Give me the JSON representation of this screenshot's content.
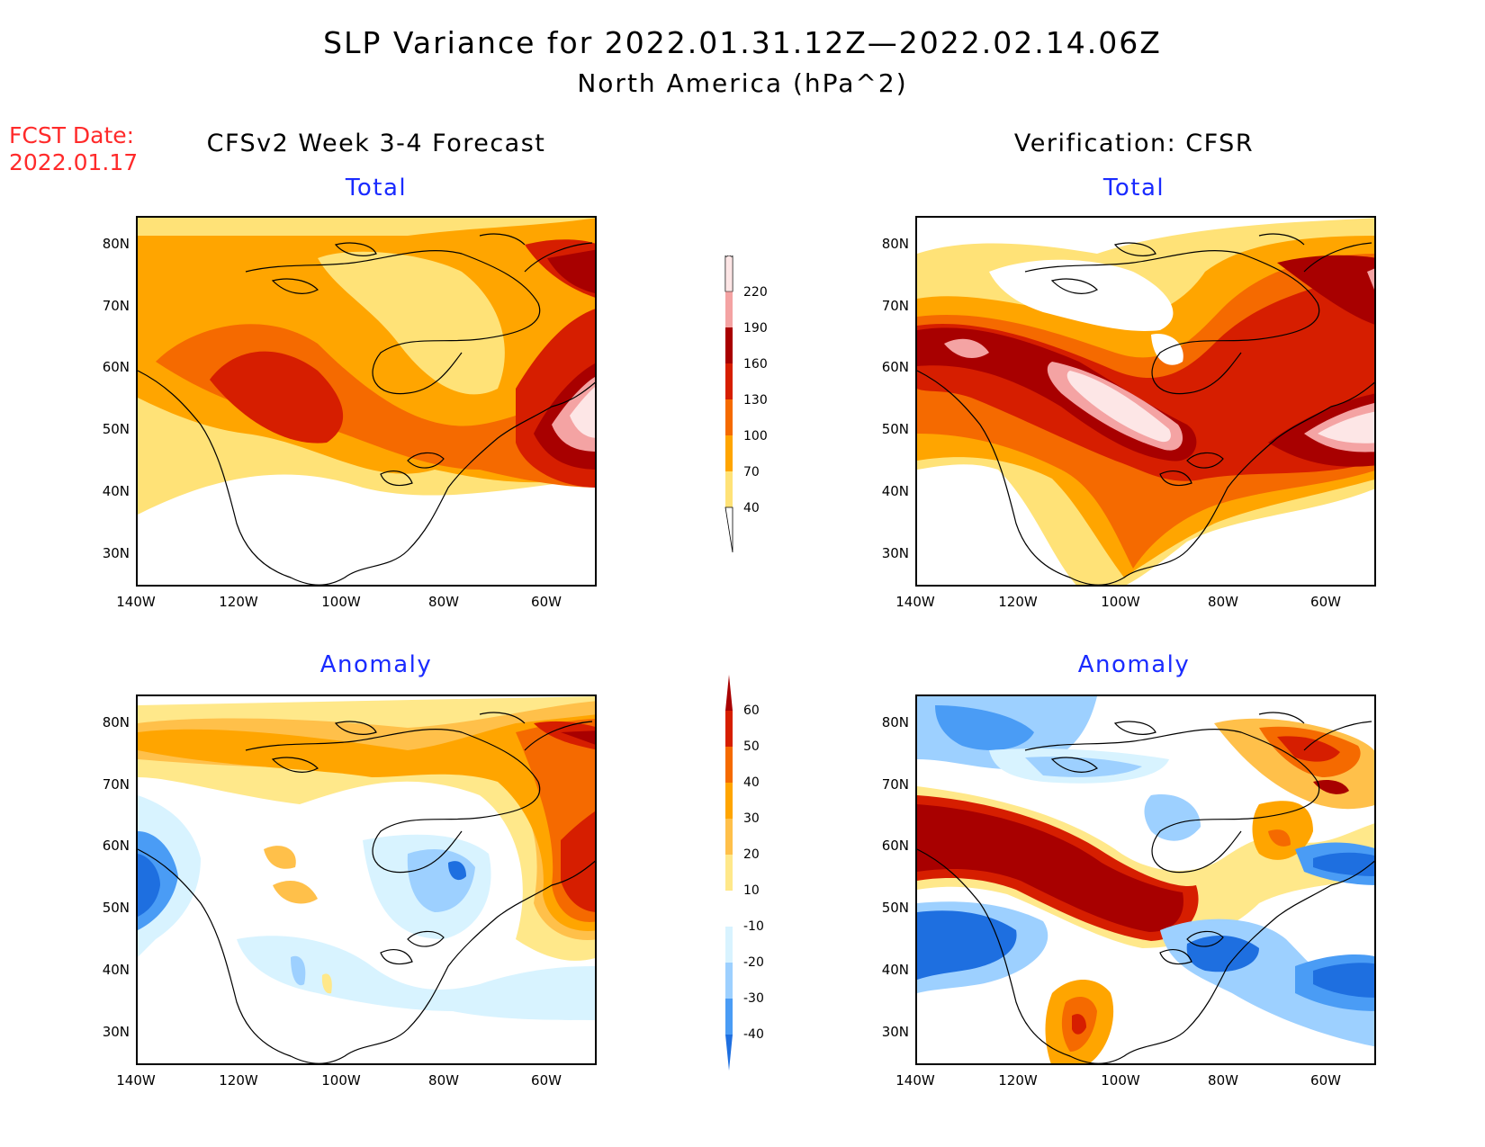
{
  "header": {
    "title": "SLP Variance for 2022.01.31.12Z—2022.02.14.06Z",
    "subtitle": "North America (hPa^2)",
    "fcst_label": "FCST Date:",
    "fcst_date": "2022.01.17"
  },
  "columns": {
    "left": "CFSv2 Week 3-4 Forecast",
    "right": "Verification: CFSR"
  },
  "panels": {
    "top_left_title": "Total",
    "top_right_title": "Total",
    "bottom_left_title": "Anomaly",
    "bottom_right_title": "Anomaly"
  },
  "axes": {
    "lat_labels": [
      "80N",
      "70N",
      "60N",
      "50N",
      "40N",
      "30N"
    ],
    "lon_labels": [
      "140W",
      "120W",
      "100W",
      "80W",
      "60W"
    ]
  },
  "colorbars": {
    "total": {
      "labels": [
        "220",
        "190",
        "160",
        "130",
        "100",
        "70",
        "40"
      ],
      "colors": [
        "#fde6e6",
        "#f4a3a3",
        "#a80000",
        "#d61e00",
        "#f56a00",
        "#ffa500",
        "#ffe277"
      ]
    },
    "anomaly": {
      "labels": [
        "60",
        "50",
        "40",
        "30",
        "20",
        "10",
        "-10",
        "-20",
        "-30",
        "-40"
      ],
      "colors": [
        "#a80000",
        "#d61e00",
        "#f56a00",
        "#ffa500",
        "#ffc04a",
        "#ffe88a",
        "#ffffff",
        "#d8f3ff",
        "#9dd0ff",
        "#4a9cf5",
        "#1e6fe0"
      ]
    }
  },
  "chart_data": {
    "type": "heatmap",
    "variable": "SLP Variance",
    "units": "hPa^2",
    "lat_range": [
      25,
      85
    ],
    "lon_range": [
      -140,
      -50
    ],
    "total_levels": [
      40,
      70,
      100,
      130,
      160,
      190,
      220
    ],
    "anomaly_levels": [
      -40,
      -30,
      -20,
      -10,
      10,
      20,
      30,
      40,
      50,
      60
    ]
  }
}
